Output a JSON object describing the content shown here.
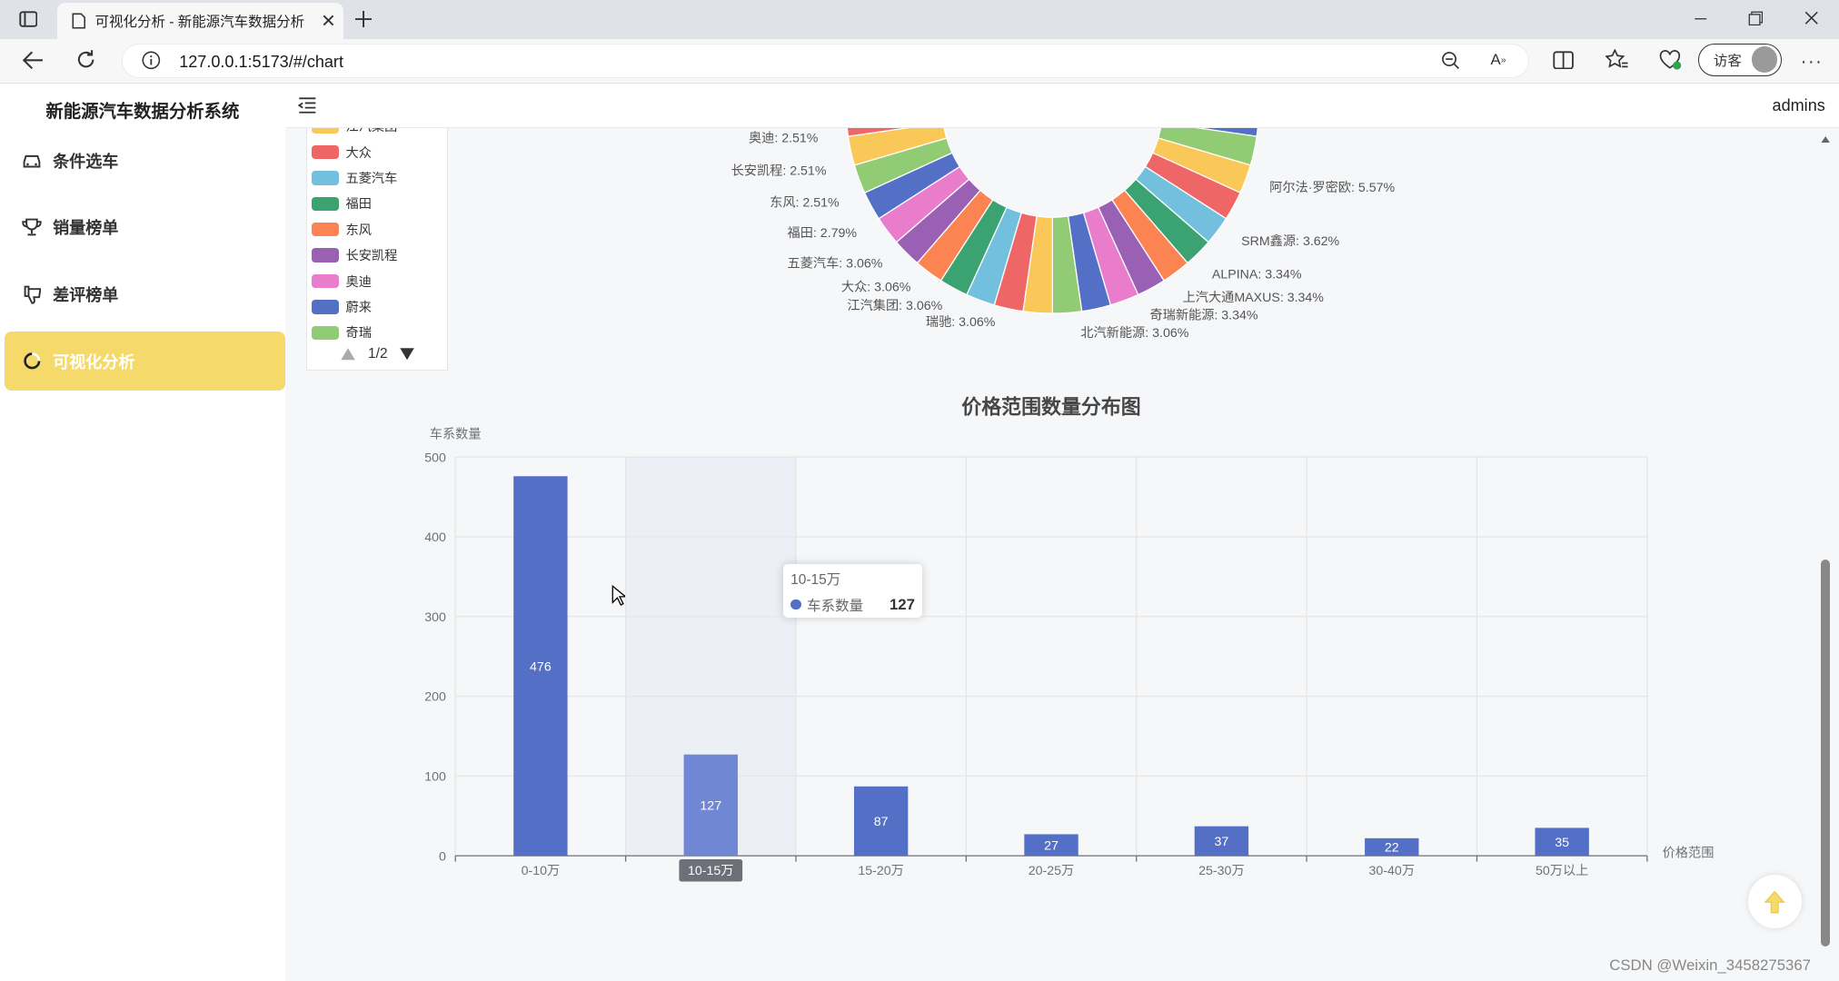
{
  "browser": {
    "tab_title": "可视化分析 - 新能源汽车数据分析",
    "url": "127.0.0.1:5173/#/chart",
    "guest_label": "访客"
  },
  "app": {
    "system_title": "新能源汽车数据分析系统",
    "user": "admins"
  },
  "sidebar": {
    "items": [
      {
        "label": "条件选车",
        "icon": "car-icon",
        "active": false
      },
      {
        "label": "销量榜单",
        "icon": "trophy-icon",
        "active": false
      },
      {
        "label": "差评榜单",
        "icon": "thumbs-down-icon",
        "active": false
      },
      {
        "label": "可视化分析",
        "icon": "chart-icon",
        "active": true
      }
    ]
  },
  "pie_legend": {
    "items": [
      {
        "label": "江汽集团",
        "color": "#fac858"
      },
      {
        "label": "大众",
        "color": "#ee6666"
      },
      {
        "label": "五菱汽车",
        "color": "#73c0de"
      },
      {
        "label": "福田",
        "color": "#3ba272"
      },
      {
        "label": "东风",
        "color": "#fc8452"
      },
      {
        "label": "长安凯程",
        "color": "#9a60b4"
      },
      {
        "label": "奥迪",
        "color": "#ea7ccc"
      },
      {
        "label": "蔚来",
        "color": "#5470c6"
      },
      {
        "label": "奇瑞",
        "color": "#91cc75"
      }
    ],
    "page": "1/2"
  },
  "pie_labels": {
    "left": [
      "奥迪: 2.51%",
      "长安凯程: 2.51%",
      "东风: 2.51%",
      "福田: 2.79%",
      "五菱汽车: 3.06%",
      "大众: 3.06%",
      "江汽集团: 3.06%",
      "瑞驰: 3.06%"
    ],
    "right": [
      "阿尔法·罗密欧: 5.57%",
      "SRM鑫源: 3.62%",
      "ALPINA: 3.34%",
      "上汽大通MAXUS: 3.34%",
      "奇瑞新能源: 3.34%",
      "北汽新能源: 3.06%"
    ]
  },
  "chart_data": {
    "type": "bar",
    "title": "价格范围数量分布图",
    "xlabel": "价格范围",
    "ylabel": "车系数量",
    "categories": [
      "0-10万",
      "10-15万",
      "15-20万",
      "20-25万",
      "25-30万",
      "30-40万",
      "50万以上"
    ],
    "series": [
      {
        "name": "车系数量",
        "values": [
          476,
          127,
          87,
          27,
          37,
          22,
          35
        ]
      }
    ],
    "ylim": [
      0,
      500
    ],
    "yticks": [
      0,
      100,
      200,
      300,
      400,
      500
    ],
    "color": "#5470c6",
    "highlight_index": 1,
    "grid": true
  },
  "tooltip": {
    "category": "10-15万",
    "series": "车系数量",
    "value": "127"
  },
  "watermark": "CSDN @Weixin_3458275367"
}
